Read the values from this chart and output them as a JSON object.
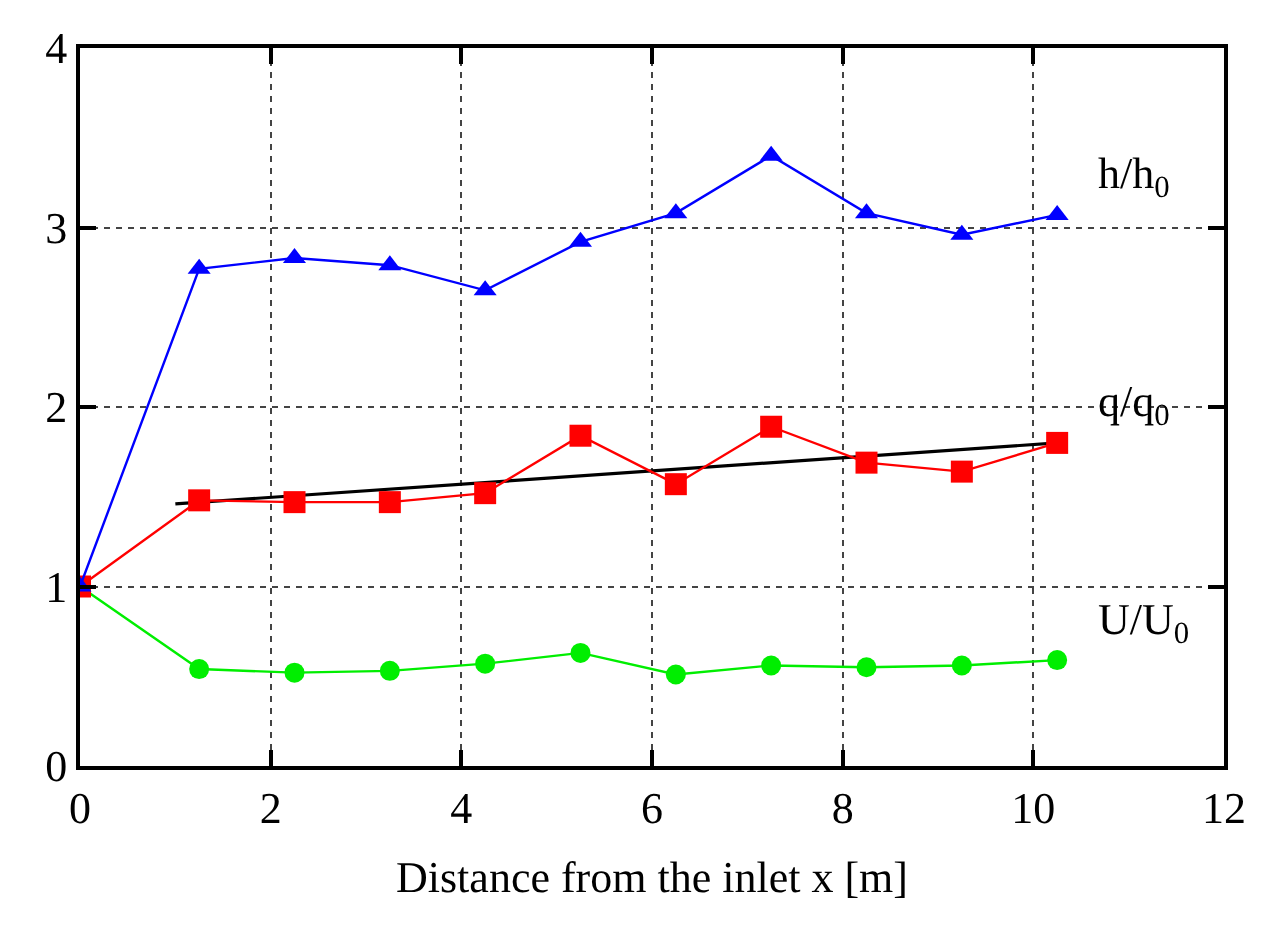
{
  "chart_data": {
    "type": "line",
    "xlabel": "Distance from the inlet x [m]",
    "x": [
      0,
      1.25,
      2.25,
      3.25,
      4.25,
      5.25,
      6.25,
      7.25,
      8.25,
      9.25,
      10.25
    ],
    "series": [
      {
        "name": "h/h$_{0}$",
        "color": "#0000ff",
        "marker": "triangle",
        "values": [
          1,
          2.77,
          2.83,
          2.79,
          2.65,
          2.92,
          3.08,
          3.4,
          3.08,
          2.96,
          3.07
        ]
      },
      {
        "name": "q/q$_{0}$",
        "color": "#ff0000",
        "marker": "square",
        "values": [
          1,
          1.48,
          1.47,
          1.47,
          1.52,
          1.84,
          1.57,
          1.89,
          1.69,
          1.64,
          1.8
        ]
      },
      {
        "name": "U/U$_{0}$",
        "color": "#00ee00",
        "marker": "circle",
        "values": [
          1,
          0.54,
          0.52,
          0.53,
          0.57,
          0.63,
          0.51,
          0.56,
          0.55,
          0.56,
          0.59
        ]
      },
      {
        "color": "#000000",
        "marker": "none",
        "x": [
          1,
          10.25
        ],
        "values": [
          1.46,
          1.8
        ]
      }
    ],
    "xlim": [
      0,
      12
    ],
    "xticks": [
      0,
      2,
      4,
      6,
      8,
      10,
      12
    ],
    "ylim": [
      0,
      4
    ],
    "yticks": [
      0,
      1,
      2,
      3,
      4
    ],
    "grid": true,
    "legend": false,
    "line_style": "solid"
  }
}
